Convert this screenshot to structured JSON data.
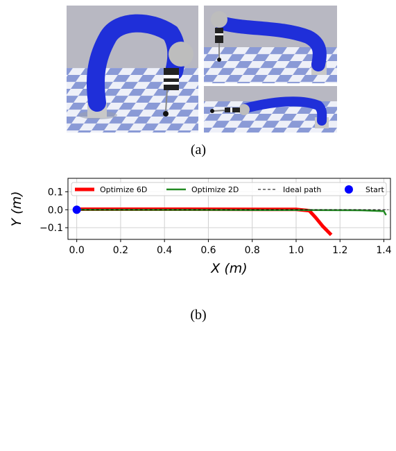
{
  "captions": {
    "a": "(a)",
    "b": "(b)"
  },
  "renders": {
    "scene": "robot-arm-simulation",
    "colors": {
      "arm": "#1f2fd9",
      "sky": "#b8b8c2",
      "floor_light": "#eef0f8",
      "floor_blue": "#8a9ad6",
      "base": "#c8c8c8"
    }
  },
  "chart_data": {
    "type": "line",
    "xlabel": "X (m)",
    "ylabel": "Y (m)",
    "xlim": [
      -0.04,
      1.43
    ],
    "ylim": [
      -0.165,
      0.175
    ],
    "xticks": [
      "0.0",
      "0.2",
      "0.4",
      "0.6",
      "0.8",
      "1.0",
      "1.2",
      "1.4"
    ],
    "xtick_values": [
      0.0,
      0.2,
      0.4,
      0.6,
      0.8,
      1.0,
      1.2,
      1.4
    ],
    "yticks": [
      "0.1",
      "0.0",
      "−0.1"
    ],
    "ytick_values": [
      0.1,
      0.0,
      -0.1
    ],
    "grid": true,
    "legend_position": "top",
    "series": [
      {
        "name": "Optimize 6D",
        "color": "#ff0000",
        "style": "solid-thick",
        "x": [
          0.0,
          0.5,
          1.0,
          1.06,
          1.09,
          1.12,
          1.16
        ],
        "y": [
          0.003,
          0.003,
          0.002,
          -0.005,
          -0.045,
          -0.09,
          -0.14
        ]
      },
      {
        "name": "Optimize 2D",
        "color": "#228b22",
        "style": "solid",
        "x": [
          0.0,
          0.5,
          1.0,
          1.3,
          1.4,
          1.41
        ],
        "y": [
          0.0,
          -0.001,
          -0.002,
          -0.003,
          -0.008,
          -0.03
        ]
      },
      {
        "name": "Ideal path",
        "color": "#000000",
        "style": "dashed",
        "x": [
          0.0,
          1.42
        ],
        "y": [
          0.0,
          0.0
        ]
      },
      {
        "name": "Start",
        "color": "#0000ff",
        "style": "marker",
        "x": [
          0.0
        ],
        "y": [
          0.0
        ]
      }
    ]
  }
}
